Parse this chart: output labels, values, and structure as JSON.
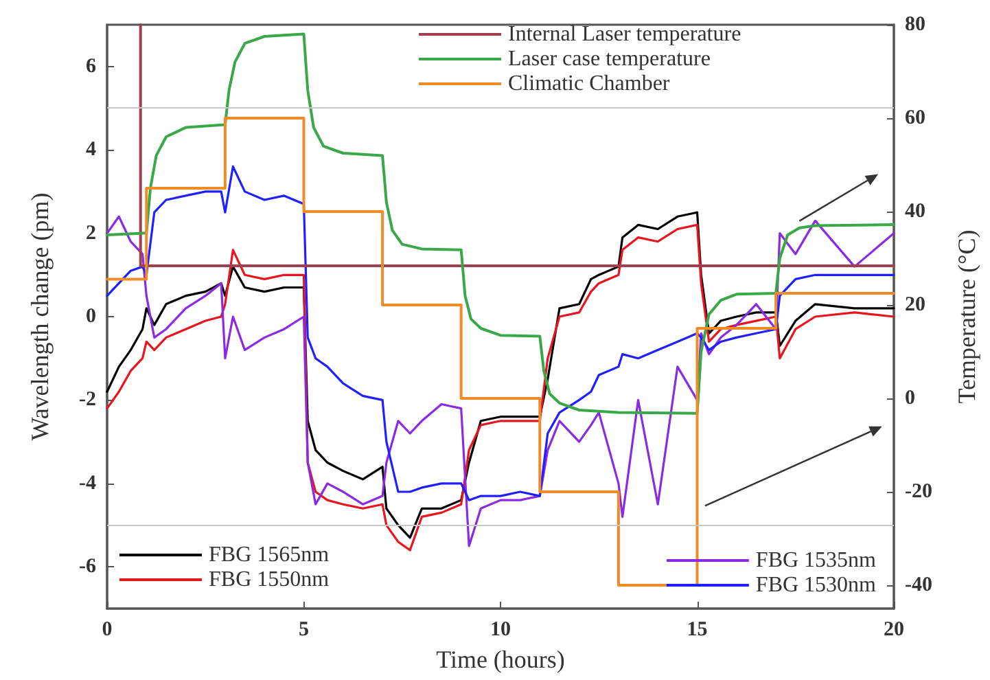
{
  "chart_data": {
    "type": "line",
    "xlabel": "Time (hours)",
    "ylabel": "Wavelength change (pm)",
    "y2label": "Temperature (°C)",
    "xlim": [
      0,
      20
    ],
    "xticks": [
      0,
      5,
      10,
      15,
      20
    ],
    "ylim": [
      -7,
      7
    ],
    "yticks": [
      -6,
      -4,
      -2,
      0,
      2,
      4,
      6
    ],
    "y2lim": [
      -45,
      80
    ],
    "y2ticks": [
      -40,
      -20,
      0,
      20,
      40,
      60,
      80
    ],
    "grid": false,
    "legend": "top",
    "marker": "none",
    "line_style": "solid",
    "x": [
      0,
      0.3,
      0.6,
      0.9,
      1.0,
      1.2,
      1.5,
      2,
      2.5,
      2.9,
      3.0,
      3.2,
      3.5,
      4,
      4.5,
      5,
      5.1,
      5.3,
      5.6,
      6,
      6.5,
      7,
      7.1,
      7.4,
      7.7,
      8,
      8.5,
      9,
      9.2,
      9.5,
      10,
      10.5,
      11,
      11.2,
      11.5,
      12,
      12.3,
      12.5,
      13,
      13.1,
      13.5,
      14,
      14.5,
      15,
      15.1,
      15.3,
      15.6,
      16,
      16.5,
      17,
      17.1,
      17.5,
      18,
      19,
      20
    ],
    "series": [
      {
        "name": "Internal Laser temperature",
        "color": "#a04050",
        "axis": "y2",
        "x": [
          0.85,
          0.85,
          20
        ],
        "values": [
          80,
          28.4,
          28.4
        ]
      },
      {
        "name": "Laser case temperature",
        "color": "#3aa848",
        "axis": "y2",
        "x": [
          0,
          1,
          1.1,
          1.25,
          1.5,
          2,
          3,
          3.1,
          3.25,
          3.5,
          4,
          5,
          5.1,
          5.25,
          5.5,
          6,
          7,
          7.1,
          7.25,
          7.5,
          8,
          9,
          9.1,
          9.25,
          9.5,
          10,
          11,
          11.1,
          11.25,
          11.5,
          12,
          13,
          15,
          15.1,
          15.3,
          15.6,
          16,
          17,
          17.1,
          17.3,
          17.6,
          18,
          20
        ],
        "values": [
          35,
          35.4,
          45,
          52,
          56,
          58,
          58.6,
          66,
          72,
          76,
          77.5,
          78,
          66,
          58,
          54,
          52.5,
          52,
          42,
          36,
          33,
          32,
          31.8,
          22,
          17,
          15,
          13.5,
          13.3,
          6,
          1,
          -1,
          -2.5,
          -3,
          -3.2,
          10,
          18,
          21,
          22.3,
          22.5,
          30,
          35,
          36.5,
          37,
          37.2
        ]
      },
      {
        "name": "Climatic Chamber",
        "color": "#f08c28",
        "axis": "y2",
        "x": [
          0,
          1,
          1,
          3,
          3,
          5,
          5,
          7,
          7,
          9,
          9,
          11,
          11,
          13,
          13,
          15,
          15,
          17,
          17,
          20
        ],
        "values": [
          25.5,
          25.5,
          45,
          45,
          60,
          60,
          40,
          40,
          20,
          20,
          0,
          0,
          -20,
          -20,
          -40,
          -40,
          15,
          15,
          22.5,
          22.5
        ]
      },
      {
        "name": "FBG 1565nm",
        "color": "#000000",
        "values": [
          -1.8,
          -1.2,
          -0.8,
          -0.3,
          0.2,
          -0.2,
          0.3,
          0.5,
          0.6,
          0.8,
          0.5,
          1.2,
          0.7,
          0.6,
          0.7,
          0.7,
          -2.5,
          -3.2,
          -3.5,
          -3.7,
          -3.9,
          -3.6,
          -4.6,
          -5.0,
          -5.3,
          -4.6,
          -4.6,
          -4.4,
          -3.5,
          -2.5,
          -2.4,
          -2.4,
          -2.4,
          -1.5,
          0.2,
          0.3,
          0.9,
          1.0,
          1.2,
          1.9,
          2.2,
          2.1,
          2.4,
          2.5,
          1.0,
          -0.4,
          -0.1,
          0.0,
          0.1,
          0.1,
          -0.7,
          -0.1,
          0.3,
          0.2,
          0.2
        ]
      },
      {
        "name": "FBG 1550nm",
        "color": "#e8141e",
        "values": [
          -2.2,
          -1.8,
          -1.3,
          -1.0,
          -0.6,
          -0.8,
          -0.5,
          -0.3,
          -0.1,
          0.0,
          0.3,
          1.6,
          1.0,
          0.9,
          1.0,
          1.0,
          -3.5,
          -4.2,
          -4.4,
          -4.5,
          -4.6,
          -4.5,
          -5.0,
          -5.4,
          -5.6,
          -4.8,
          -4.7,
          -4.5,
          -3.2,
          -2.6,
          -2.5,
          -2.5,
          -2.5,
          -1.0,
          0.0,
          0.1,
          0.6,
          0.8,
          1.0,
          1.6,
          1.9,
          1.8,
          2.1,
          2.2,
          0.8,
          -0.6,
          -0.3,
          -0.2,
          -0.1,
          0.0,
          -1.0,
          -0.3,
          0.0,
          0.1,
          0.0
        ]
      },
      {
        "name": "FBG 1535nm",
        "color": "#8a2be2",
        "values": [
          2.0,
          2.4,
          1.8,
          1.5,
          0.5,
          -0.5,
          -0.3,
          0.2,
          0.5,
          0.8,
          -1.0,
          0.0,
          -0.8,
          -0.5,
          -0.3,
          0.0,
          -3.5,
          -4.5,
          -4.0,
          -4.2,
          -4.5,
          -4.3,
          -3.5,
          -2.5,
          -2.8,
          -2.5,
          -2.1,
          -2.2,
          -5.5,
          -4.6,
          -4.4,
          -4.4,
          -4.3,
          -3.2,
          -2.5,
          -3.0,
          -2.6,
          -2.3,
          -4.0,
          -4.8,
          -2.0,
          -4.5,
          -1.2,
          -2.0,
          -0.4,
          -0.9,
          -0.5,
          -0.2,
          0.3,
          -0.3,
          2.0,
          1.5,
          2.3,
          1.2,
          2.0
        ]
      },
      {
        "name": "FBG 1530nm",
        "color": "#1f1fff",
        "values": [
          0.5,
          0.8,
          1.1,
          1.2,
          1.0,
          2.5,
          2.8,
          2.9,
          3.0,
          3.0,
          2.5,
          3.6,
          3.0,
          2.8,
          2.9,
          2.7,
          -0.5,
          -1.0,
          -1.2,
          -1.6,
          -1.9,
          -2.0,
          -3.0,
          -4.2,
          -4.2,
          -4.1,
          -4.0,
          -4.0,
          -4.4,
          -4.3,
          -4.3,
          -4.2,
          -4.3,
          -2.8,
          -2.3,
          -2.0,
          -1.8,
          -1.4,
          -1.2,
          -0.9,
          -1.0,
          -0.8,
          -0.6,
          -0.4,
          -0.5,
          -0.8,
          -0.6,
          -0.5,
          -0.4,
          -0.3,
          0.5,
          0.9,
          1.0,
          1.0,
          1.0
        ]
      }
    ],
    "ref_lines": [
      {
        "axis": "y",
        "value": 5,
        "color": "#c8c8c8"
      },
      {
        "axis": "y",
        "value": -5,
        "color": "#c8c8c8"
      }
    ]
  }
}
